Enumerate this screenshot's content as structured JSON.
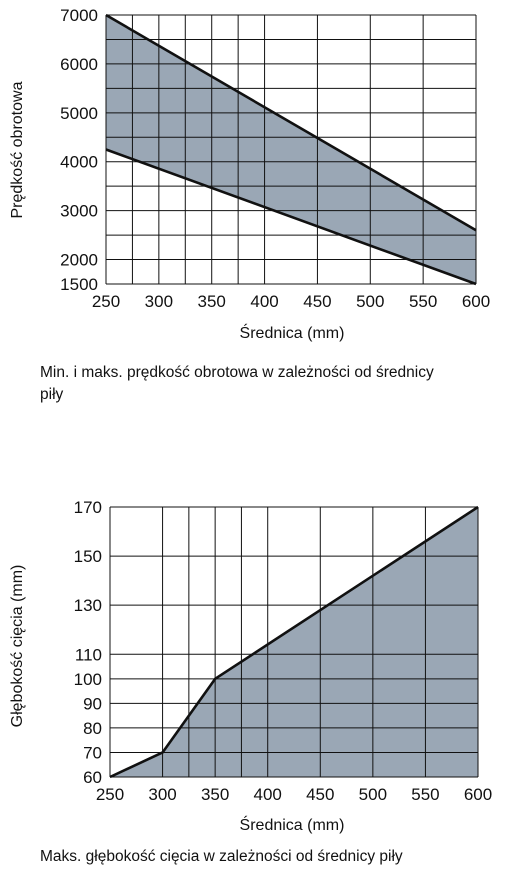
{
  "chart_data": [
    {
      "type": "area",
      "ylabel": "Prędkość obrotowa",
      "xlabel": "Średnica (mm)",
      "xlim": [
        250,
        600
      ],
      "ylim": [
        1500,
        7000
      ],
      "x_ticks": [
        250,
        300,
        350,
        400,
        450,
        500,
        550,
        600
      ],
      "y_ticks": [
        1500,
        2000,
        3000,
        4000,
        5000,
        6000,
        7000
      ],
      "x_grid": [
        250,
        275,
        300,
        325,
        350,
        375,
        400,
        450,
        500,
        550,
        600
      ],
      "y_grid": [
        1500,
        2000,
        2500,
        3000,
        3500,
        4000,
        4500,
        5000,
        5500,
        6000,
        6500,
        7000
      ],
      "grid": true,
      "series": [
        {
          "role": "max",
          "x": [
            250,
            600
          ],
          "y": [
            7000,
            2600
          ]
        },
        {
          "role": "min",
          "x": [
            250,
            600
          ],
          "y": [
            4250,
            1500
          ]
        }
      ],
      "fill_color": "#9aa7b5",
      "caption": "Min. i maks. prędkość obrotowa w zależności od średnicy piły"
    },
    {
      "type": "area",
      "ylabel": "Głębokość cięcia (mm)",
      "xlabel": "Średnica (mm)",
      "xlim": [
        250,
        600
      ],
      "ylim": [
        60,
        170
      ],
      "x_ticks": [
        250,
        300,
        350,
        400,
        450,
        500,
        550,
        600
      ],
      "y_ticks": [
        60,
        70,
        80,
        90,
        100,
        110,
        130,
        150,
        170
      ],
      "x_grid": [
        250,
        300,
        325,
        350,
        375,
        400,
        450,
        500,
        550,
        600
      ],
      "y_grid": [
        60,
        70,
        80,
        90,
        100,
        110,
        130,
        150,
        170
      ],
      "grid": true,
      "series": [
        {
          "role": "max",
          "x": [
            250,
            300,
            350,
            600
          ],
          "y": [
            60,
            70,
            100,
            170
          ]
        }
      ],
      "fill_color": "#9aa7b5",
      "caption": "Maks. głębokość cięcia w zależności od średnicy piły"
    }
  ]
}
